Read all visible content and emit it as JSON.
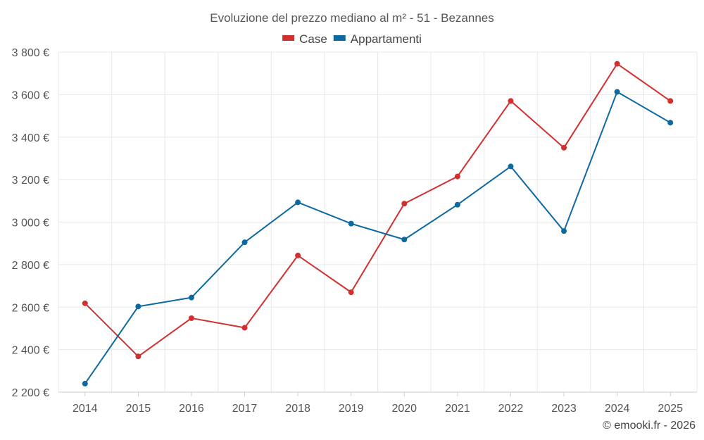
{
  "chart_data": {
    "type": "line",
    "title": "Evoluzione del prezzo mediano al m² - 51 - Bezannes",
    "categories": [
      "2014",
      "2015",
      "2016",
      "2017",
      "2018",
      "2019",
      "2020",
      "2021",
      "2022",
      "2023",
      "2024",
      "2025"
    ],
    "series": [
      {
        "name": "Case",
        "color": "#d32f2f",
        "values": [
          2618,
          2368,
          2548,
          2503,
          2843,
          2670,
          3087,
          3215,
          3570,
          3350,
          3745,
          3570
        ]
      },
      {
        "name": "Appartamenti",
        "color": "#0d6aa0",
        "values": [
          2240,
          2603,
          2645,
          2905,
          3093,
          2993,
          2918,
          3082,
          3262,
          2958,
          3613,
          3468
        ]
      }
    ],
    "y_ticks": [
      2200,
      2400,
      2600,
      2800,
      3000,
      3200,
      3400,
      3600,
      3800
    ],
    "y_tick_labels": [
      "2 200 €",
      "2 400 €",
      "2 600 €",
      "2 800 €",
      "3 000 €",
      "3 200 €",
      "3 400 €",
      "3 600 €",
      "3 800 €"
    ],
    "ylim": [
      2200,
      3800
    ],
    "xlabel": "",
    "ylabel": "",
    "grid": true,
    "legend_position": "top-center"
  },
  "credit": "© emooki.fr - 2026"
}
